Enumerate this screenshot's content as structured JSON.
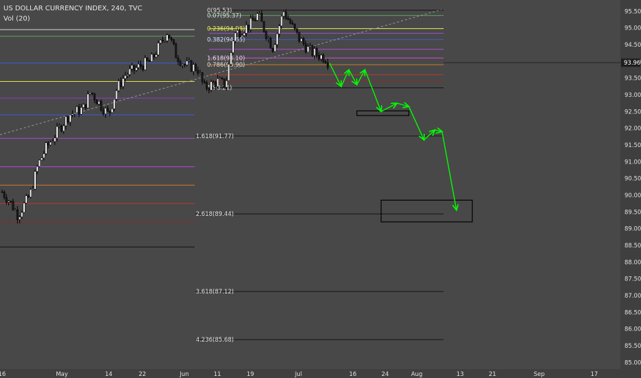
{
  "header": {
    "title": "US DOLLAR CURRENCY INDEX, 240, TVC",
    "volume": "Vol (20)"
  },
  "colors": {
    "background": "#484848",
    "axis_bg": "#3f3f3f",
    "text": "#e0e0e0",
    "candle_up": "#ffffff",
    "candle_down": "#1a1a1a",
    "wick": "#000000",
    "arrow": "#00ff00",
    "trendline": "#9a9a9a"
  },
  "chart_data": {
    "type": "candlestick",
    "y_axis": {
      "position": "right",
      "ylim": [
        84.8,
        95.65
      ],
      "tick_labels": [
        "95.50",
        "95.00",
        "94.50",
        "94.00",
        "93.50",
        "93.00",
        "92.50",
        "92.00",
        "91.50",
        "91.00",
        "90.50",
        "90.00",
        "89.50",
        "89.00",
        "88.50",
        "88.00",
        "87.50",
        "87.00",
        "86.50",
        "86.00",
        "85.50",
        "85.00"
      ]
    },
    "x_axis": {
      "tick_labels": [
        "16",
        "May",
        "14",
        "22",
        "Jun",
        "11",
        "19",
        "Jul",
        "16",
        "24",
        "Aug",
        "13",
        "21",
        "Sep",
        "17"
      ]
    },
    "last_price": "93.96",
    "price_path": [
      [
        "04-16",
        90.1
      ],
      [
        "04-18",
        89.8
      ],
      [
        "04-20",
        89.4
      ],
      [
        "04-23",
        90.0
      ],
      [
        "04-25",
        90.9
      ],
      [
        "04-27",
        91.4
      ],
      [
        "05-01",
        92.1
      ],
      [
        "05-03",
        92.4
      ],
      [
        "05-07",
        92.6
      ],
      [
        "05-09",
        93.1
      ],
      [
        "05-11",
        92.8
      ],
      [
        "05-14",
        92.4
      ],
      [
        "05-16",
        93.2
      ],
      [
        "05-18",
        93.6
      ],
      [
        "05-22",
        93.9
      ],
      [
        "05-24",
        94.0
      ],
      [
        "05-28",
        94.9
      ],
      [
        "05-30",
        94.2
      ],
      [
        "06-01",
        93.9
      ],
      [
        "06-05",
        93.8
      ],
      [
        "06-07",
        93.2
      ],
      [
        "06-11",
        93.4
      ],
      [
        "06-13",
        93.3
      ],
      [
        "06-15",
        94.8
      ],
      [
        "06-19",
        95.1
      ],
      [
        "06-21",
        95.4
      ],
      [
        "06-25",
        94.4
      ],
      [
        "06-28",
        95.5
      ],
      [
        "07-02",
        94.7
      ],
      [
        "07-05",
        94.3
      ],
      [
        "07-09",
        94.1
      ],
      [
        "07-10",
        93.9
      ]
    ],
    "fib_left": {
      "levels": [
        {
          "value": 94.95,
          "color": "#d8d8d8",
          "label": ""
        },
        {
          "value": 94.75,
          "color": "#5fa35f",
          "label": ""
        },
        {
          "value": 93.95,
          "color": "#3b5bd9",
          "label": ""
        },
        {
          "value": 93.4,
          "color": "#e6e64a",
          "label": ""
        },
        {
          "value": 92.9,
          "color": "#8f3fcf",
          "label": ""
        },
        {
          "value": 92.4,
          "color": "#3b5bd9",
          "label": ""
        },
        {
          "value": 91.7,
          "color": "#b14ad9",
          "label": ""
        },
        {
          "value": 90.85,
          "color": "#b14ad9",
          "label": ""
        },
        {
          "value": 90.3,
          "color": "#d2782a",
          "label": ""
        },
        {
          "value": 89.75,
          "color": "#c0392b",
          "label": ""
        },
        {
          "value": 89.2,
          "color": "#8b2a2a",
          "label": ""
        },
        {
          "value": 88.45,
          "color": "#111111",
          "label": ""
        }
      ]
    },
    "fib_right": {
      "levels": [
        {
          "value": 95.53,
          "color": "#111111",
          "label": "0(95.53)"
        },
        {
          "value": 95.37,
          "color": "#5fa35f",
          "label": "0.07(95.37)"
        },
        {
          "value": 94.98,
          "color": "#f0f05a",
          "label": "0.236(94.98)"
        },
        {
          "value": 94.84,
          "color": "#9b4fd4",
          "label": ""
        },
        {
          "value": 94.65,
          "color": "#3b5bd9",
          "label": "0.382(94.65)"
        },
        {
          "value": 94.36,
          "color": "#b14ad9",
          "label": ""
        },
        {
          "value": 94.1,
          "color": "#d04ad0",
          "label": "1.618(94.10)"
        },
        {
          "value": 93.9,
          "color": "#d2782a",
          "label": "0.786(93.90)"
        },
        {
          "value": 93.6,
          "color": "#c0392b",
          "label": ""
        },
        {
          "value": 93.4,
          "color": "#8b2a2a",
          "label": ""
        },
        {
          "value": 93.21,
          "color": "#111111",
          "label": "1(93.21)"
        }
      ],
      "extensions": [
        {
          "value": 91.77,
          "label": "1.618(91.77)"
        },
        {
          "value": 89.44,
          "label": "2.618(89.44)"
        },
        {
          "value": 87.12,
          "label": "3.618(87.12)"
        },
        {
          "value": 85.68,
          "label": "4.236(85.68)"
        }
      ]
    },
    "projected_path": [
      [
        "07-10",
        93.95
      ],
      [
        "07-13",
        93.25
      ],
      [
        "07-15",
        93.75
      ],
      [
        "07-17",
        93.3
      ],
      [
        "07-19",
        93.75
      ],
      [
        "07-23",
        92.5
      ],
      [
        "07-27",
        92.75
      ],
      [
        "07-30",
        92.65
      ],
      [
        "08-03",
        91.65
      ],
      [
        "08-06",
        91.95
      ],
      [
        "08-08",
        91.9
      ],
      [
        "08-12",
        89.55
      ]
    ],
    "zones": [
      {
        "from": "07-17",
        "to": "07-30",
        "low": 92.38,
        "high": 92.52
      },
      {
        "from": "07-23",
        "to": "08-16",
        "low": 89.2,
        "high": 89.85
      }
    ]
  }
}
